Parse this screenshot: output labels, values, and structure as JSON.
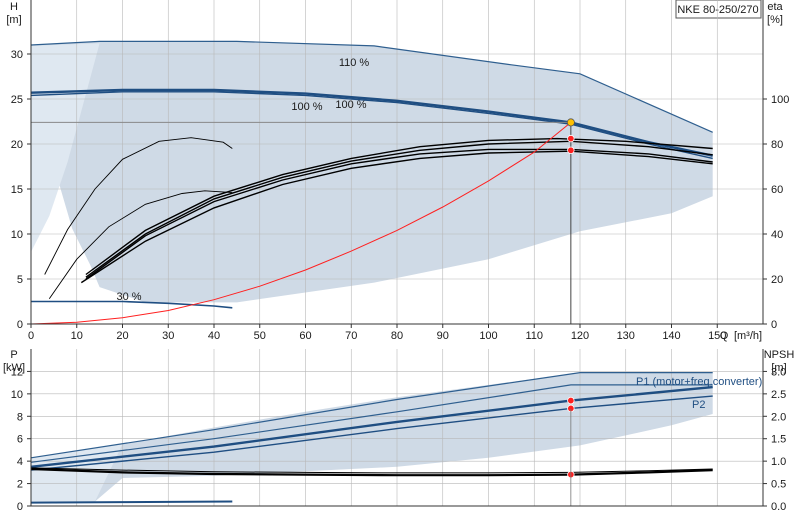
{
  "title": "NKE 80-250/270",
  "colors": {
    "band_fill": "#cfdae6",
    "band_light": "#dfe8f1",
    "band_edge": "#2f5f8f",
    "curve_dark": "#000000",
    "curve_blue": "#1f4e82",
    "system_red": "#ff2020",
    "duty_point": "#ffc000",
    "grid": "#b8b8b8"
  },
  "chart_data": [
    {
      "type": "line",
      "panel": "head-efficiency",
      "ylabel_left": "H",
      "ylabel_left_unit": "[m]",
      "ylabel_right": "eta",
      "ylabel_right_unit": "[%]",
      "xlabel": "Q",
      "xlabel_unit": "[m³/h]",
      "xlim": [
        0,
        160
      ],
      "ylim_left": [
        0,
        36
      ],
      "ylim_right": [
        0,
        144
      ],
      "xticks": [
        "0",
        "10",
        "20",
        "30",
        "40",
        "50",
        "60",
        "70",
        "80",
        "90",
        "100",
        "110",
        "120",
        "130",
        "140",
        "150"
      ],
      "yticks_left": [
        "0",
        "5",
        "10",
        "15",
        "20",
        "25",
        "30"
      ],
      "yticks_right": [
        "0",
        "20",
        "40",
        "60",
        "80",
        "100"
      ],
      "grid": true,
      "labels": [
        "110 %",
        "100 %",
        "100 %",
        "30 %"
      ],
      "band_upper": [
        [
          0,
          31
        ],
        [
          15,
          31.4
        ],
        [
          45,
          31.4
        ],
        [
          75,
          30.9
        ],
        [
          105,
          28.8
        ],
        [
          120,
          27.8
        ],
        [
          149,
          21.3
        ]
      ],
      "band_lower": [
        [
          149,
          14.2
        ],
        [
          140,
          12.3
        ],
        [
          120,
          10.3
        ],
        [
          100,
          7.2
        ],
        [
          75,
          4.6
        ],
        [
          45,
          2.4
        ],
        [
          25,
          2.4
        ],
        [
          15,
          4.1
        ],
        [
          13,
          6.5
        ],
        [
          9,
          10.6
        ],
        [
          6,
          15.8
        ],
        [
          4,
          18.4
        ]
      ],
      "band_light_extra": [
        [
          0,
          30.9
        ],
        [
          15,
          31.2
        ],
        [
          8,
          18
        ],
        [
          4,
          12
        ],
        [
          0,
          8
        ]
      ],
      "series": [
        {
          "role": "head-110",
          "points": [
            [
              0,
              31
            ],
            [
              15,
              31.4
            ],
            [
              45,
              31.4
            ],
            [
              75,
              30.9
            ],
            [
              105,
              28.8
            ],
            [
              120,
              27.8
            ],
            [
              149,
              21.3
            ]
          ]
        },
        {
          "role": "head-100",
          "points": [
            [
              0,
              25.7
            ],
            [
              20,
              26
            ],
            [
              40,
              26
            ],
            [
              60,
              25.6
            ],
            [
              80,
              24.8
            ],
            [
              100,
              23.6
            ],
            [
              118,
              22.4
            ],
            [
              135,
              20.2
            ],
            [
              149,
              18.7
            ]
          ]
        },
        {
          "role": "head-100-b",
          "points": [
            [
              0,
              25.4
            ],
            [
              20,
              25.8
            ],
            [
              40,
              25.8
            ],
            [
              60,
              25.4
            ],
            [
              80,
              24.6
            ],
            [
              100,
              23.4
            ],
            [
              118,
              22.2
            ],
            [
              135,
              20
            ],
            [
              149,
              18.4
            ]
          ]
        },
        {
          "role": "head-30",
          "points": [
            [
              0,
              2.5
            ],
            [
              10,
              2.5
            ],
            [
              20,
              2.5
            ],
            [
              30,
              2.3
            ],
            [
              40,
              2
            ],
            [
              44,
              1.8
            ]
          ]
        },
        {
          "role": "eta-1",
          "points": [
            [
              3,
              5.5
            ],
            [
              8,
              10.5
            ],
            [
              14,
              15
            ],
            [
              20,
              18.3
            ],
            [
              28,
              20.3
            ],
            [
              35,
              20.7
            ],
            [
              42,
              20.2
            ],
            [
              44,
              19.5
            ]
          ]
        },
        {
          "role": "eta-2",
          "points": [
            [
              4,
              2.8
            ],
            [
              10,
              7.2
            ],
            [
              17,
              10.8
            ],
            [
              25,
              13.3
            ],
            [
              33,
              14.5
            ],
            [
              38,
              14.8
            ],
            [
              44,
              14.6
            ]
          ]
        },
        {
          "role": "eta-3",
          "points": [
            [
              12,
              5.5
            ],
            [
              25,
              10.4
            ],
            [
              40,
              14.2
            ],
            [
              55,
              16.6
            ],
            [
              70,
              18.4
            ],
            [
              85,
              19.7
            ],
            [
              100,
              20.4
            ],
            [
              115,
              20.6
            ],
            [
              130,
              20.3
            ],
            [
              149,
              19.5
            ]
          ]
        },
        {
          "role": "eta-4",
          "points": [
            [
              12,
              5
            ],
            [
              25,
              9.8
            ],
            [
              40,
              13.6
            ],
            [
              55,
              16
            ],
            [
              70,
              17.8
            ],
            [
              85,
              18.9
            ],
            [
              100,
              19.4
            ],
            [
              118,
              19.4
            ],
            [
              135,
              18.9
            ],
            [
              149,
              18
            ]
          ]
        },
        {
          "role": "eta-5",
          "points": [
            [
              11,
              4.6
            ],
            [
              25,
              9.2
            ],
            [
              40,
              12.9
            ],
            [
              55,
              15.5
            ],
            [
              70,
              17.3
            ],
            [
              85,
              18.4
            ],
            [
              100,
              19
            ],
            [
              118,
              19.2
            ],
            [
              135,
              18.6
            ],
            [
              149,
              17.8
            ]
          ]
        },
        {
          "role": "eta-6",
          "points": [
            [
              12,
              5.2
            ],
            [
              25,
              10
            ],
            [
              40,
              13.9
            ],
            [
              55,
              16.3
            ],
            [
              70,
              18.1
            ],
            [
              85,
              19.3
            ],
            [
              100,
              20
            ],
            [
              118,
              20.3
            ],
            [
              135,
              19.7
            ],
            [
              149,
              18.8
            ]
          ]
        }
      ],
      "system_curve": [
        [
          0,
          0
        ],
        [
          10,
          0.2
        ],
        [
          20,
          0.7
        ],
        [
          30,
          1.5
        ],
        [
          40,
          2.7
        ],
        [
          50,
          4.2
        ],
        [
          60,
          6
        ],
        [
          70,
          8.1
        ],
        [
          80,
          10.4
        ],
        [
          90,
          13
        ],
        [
          100,
          15.9
        ],
        [
          110,
          19.1
        ],
        [
          118,
          22.4
        ]
      ],
      "duty_point": {
        "q": 118,
        "h": 22.4
      },
      "markers": [
        [
          118,
          20.6
        ],
        [
          118,
          19.3
        ]
      ],
      "refline_h": 22.4
    },
    {
      "type": "line",
      "panel": "power-npsh",
      "ylabel_left": "P",
      "ylabel_left_unit": "[kW]",
      "ylabel_right": "NPSH",
      "ylabel_right_unit": "[m]",
      "xlim": [
        0,
        160
      ],
      "ylim_left": [
        0,
        14
      ],
      "ylim_right": [
        0,
        3.5
      ],
      "yticks_left": [
        "0",
        "2",
        "4",
        "6",
        "8",
        "10",
        "12"
      ],
      "yticks_right": [
        "0.0",
        "0.5",
        "1.0",
        "1.5",
        "2.0",
        "2.5",
        "3.0"
      ],
      "grid": true,
      "legend": [
        "P1 (motor+freq.converter)",
        "P2"
      ],
      "band_upper": [
        [
          0,
          4.3
        ],
        [
          20,
          5.5
        ],
        [
          40,
          7
        ],
        [
          60,
          8.4
        ],
        [
          80,
          9.7
        ],
        [
          100,
          10.8
        ],
        [
          120,
          11.9
        ],
        [
          149,
          11.9
        ]
      ],
      "band_lower": [
        [
          149,
          8.2
        ],
        [
          140,
          7.2
        ],
        [
          120,
          5.4
        ],
        [
          100,
          4.3
        ],
        [
          80,
          3.5
        ],
        [
          60,
          3.1
        ],
        [
          40,
          2.7
        ],
        [
          20,
          2.5
        ],
        [
          14,
          0.4
        ],
        [
          0,
          0.4
        ]
      ],
      "band_light_extra": [
        [
          0,
          4.3
        ],
        [
          20,
          5.5
        ],
        [
          14,
          0.4
        ],
        [
          0,
          0.4
        ]
      ],
      "series": [
        {
          "role": "p1-upper",
          "points": [
            [
              0,
              4.3
            ],
            [
              40,
              6.8
            ],
            [
              80,
              9.5
            ],
            [
              120,
              11.9
            ],
            [
              149,
              11.9
            ]
          ]
        },
        {
          "role": "p1-upper-b",
          "points": [
            [
              0,
              3.9
            ],
            [
              40,
              6
            ],
            [
              80,
              8.4
            ],
            [
              118,
              10.8
            ],
            [
              149,
              10.8
            ]
          ]
        },
        {
          "role": "p1",
          "points": [
            [
              0,
              3.5
            ],
            [
              40,
              5.3
            ],
            [
              80,
              7.5
            ],
            [
              118,
              9.4
            ],
            [
              149,
              10.6
            ]
          ]
        },
        {
          "role": "p2",
          "points": [
            [
              0,
              3.2
            ],
            [
              40,
              4.8
            ],
            [
              80,
              6.9
            ],
            [
              118,
              8.7
            ],
            [
              149,
              9.8
            ]
          ]
        },
        {
          "role": "npsh",
          "points": [
            [
              0,
              3.3
            ],
            [
              20,
              3
            ],
            [
              40,
              2.85
            ],
            [
              60,
              2.8
            ],
            [
              80,
              2.75
            ],
            [
              100,
              2.75
            ],
            [
              118,
              2.8
            ],
            [
              135,
              3
            ],
            [
              149,
              3.2
            ]
          ]
        },
        {
          "role": "npsh-b",
          "points": [
            [
              0,
              3.4
            ],
            [
              20,
              3.2
            ],
            [
              40,
              3.05
            ],
            [
              60,
              3
            ],
            [
              80,
              2.95
            ],
            [
              100,
              2.95
            ],
            [
              118,
              3
            ],
            [
              135,
              3.15
            ],
            [
              149,
              3.3
            ]
          ]
        },
        {
          "role": "p-30",
          "points": [
            [
              0,
              0.3
            ],
            [
              20,
              0.35
            ],
            [
              44,
              0.4
            ]
          ]
        }
      ],
      "markers": [
        [
          118,
          9.4
        ],
        [
          118,
          8.7
        ],
        [
          118,
          2.8
        ]
      ],
      "markers_sizes": [
        1,
        1,
        1
      ]
    }
  ]
}
